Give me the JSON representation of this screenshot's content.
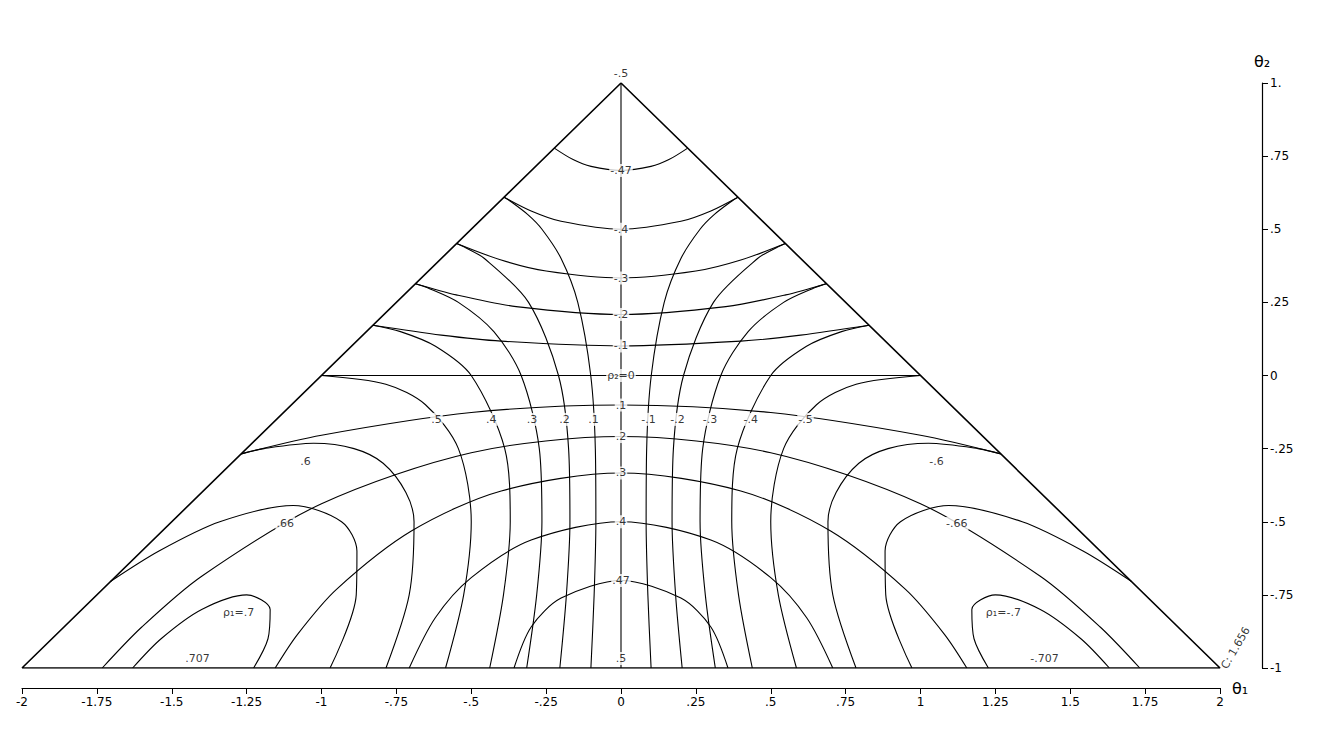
{
  "chart_data": {
    "type": "line",
    "xlabel": "θ₁",
    "ylabel": "θ₂",
    "color": "#000000",
    "grid": false,
    "xlim": [
      -2,
      2
    ],
    "xticks": [
      -2,
      -1.75,
      -1.5,
      -1.25,
      -1,
      {
        "value": -0.75,
        "label": "-.75"
      },
      {
        "value": -0.5,
        "label": "-.5"
      },
      {
        "value": -0.25,
        "label": "-.25"
      },
      0,
      {
        "value": 0.25,
        "label": ".25"
      },
      {
        "value": 0.5,
        "label": ".5"
      },
      {
        "value": 0.75,
        "label": ".75"
      },
      1,
      1.25,
      1.5,
      1.75,
      2
    ],
    "ylim": [
      -1,
      1
    ],
    "yticks": [
      -1,
      {
        "value": -0.75,
        "label": "-.75"
      },
      {
        "value": -0.5,
        "label": "-.5"
      },
      {
        "value": -0.25,
        "label": "-.25"
      },
      0,
      {
        "value": 0.25,
        "label": ".25"
      },
      {
        "value": 0.5,
        "label": ".5"
      },
      {
        "value": 0.75,
        "label": ".75"
      },
      {
        "value": 1,
        "label": "1."
      }
    ],
    "boundary": {
      "x": [
        -2,
        0,
        2,
        -2
      ],
      "values": [
        -1,
        1,
        -1,
        -1
      ]
    },
    "rho2_curves": [
      {
        "label": "-.47",
        "x": [
          -0.2227,
          -0.16,
          -0.1,
          0,
          0.1,
          0.16,
          0.2227
        ],
        "values": [
          0.7773,
          0.7381,
          0.7149,
          0.7009,
          0.7149,
          0.7381,
          0.7773
        ]
      },
      {
        "label": "-.4",
        "x": [
          -0.3904,
          -0.3,
          -0.2,
          0,
          0.2,
          0.3,
          0.3904
        ],
        "values": [
          0.6096,
          0.5626,
          0.5272,
          0.5,
          0.5272,
          0.5626,
          0.6096
        ]
      },
      {
        "label": "-.3",
        "x": [
          -0.5486,
          -0.4,
          -0.25,
          0,
          0.25,
          0.4,
          0.5486
        ],
        "values": [
          0.4514,
          0.3948,
          0.357,
          0.3333,
          0.357,
          0.3948,
          0.4514
        ]
      },
      {
        "label": "-.2",
        "x": [
          -0.6861,
          -0.55,
          -0.35,
          0,
          0.35,
          0.55,
          0.6861
        ],
        "values": [
          0.3139,
          0.2757,
          0.2356,
          0.2087,
          0.2356,
          0.2757,
          0.3139
        ]
      },
      {
        "label": "-.1",
        "x": [
          -0.8284,
          -0.6,
          -0.4,
          0,
          0.4,
          0.6,
          0.8284
        ],
        "values": [
          0.1716,
          0.1379,
          0.1174,
          0.101,
          0.1174,
          0.1379,
          0.1716
        ]
      },
      {
        "label": "ρ₂=0",
        "x": [
          -1,
          0,
          1
        ],
        "values": [
          0,
          0,
          0
        ]
      },
      {
        "label": ".1",
        "x": [
          -1.268,
          -1,
          -0.5,
          0,
          0.5,
          1,
          1.268
        ],
        "values": [
          -0.268,
          -0.2042,
          -0.1266,
          -0.101,
          -0.1266,
          -0.2042,
          -0.268
        ]
      },
      {
        "label": ".2",
        "x": [
          -1.7321,
          -1.6,
          -1.4,
          -1,
          -0.5,
          0,
          0.5,
          1,
          1.4,
          1.6,
          1.7321
        ],
        "values": [
          -1,
          -0.8599,
          -0.6862,
          -0.4384,
          -0.2639,
          -0.2087,
          -0.2639,
          -0.4384,
          -0.6862,
          -0.8599,
          -1
        ]
      },
      {
        "label": ".3",
        "x": [
          -1.1547,
          -1.08,
          -0.95,
          -0.7,
          -0.4,
          0,
          0.4,
          0.7,
          0.95,
          1.08,
          1.1547
        ],
        "values": [
          -1,
          -0.8848,
          -0.7311,
          -0.5319,
          -0.3948,
          -0.3333,
          -0.3948,
          -0.5319,
          -0.7311,
          -0.8848,
          -1
        ]
      },
      {
        "label": ".4",
        "x": [
          -0.7071,
          -0.62,
          -0.5,
          -0.3,
          0,
          0.3,
          0.5,
          0.62,
          0.7071
        ],
        "values": [
          -1,
          -0.8281,
          -0.691,
          -0.5626,
          -0.5,
          -0.5626,
          -0.691,
          -0.8281,
          -1
        ]
      },
      {
        "label": ".47",
        "x": [
          -0.3572,
          -0.3,
          -0.2,
          0,
          0.2,
          0.3,
          0.3572
        ],
        "values": [
          -1,
          -0.8596,
          -0.761,
          -0.7009,
          -0.761,
          -0.8596,
          -1
        ]
      }
    ],
    "rho1_curves": [
      {
        "label": "ρ₁=.7",
        "x": [
          -1.2266,
          -1.1787,
          -1.1714,
          -1.25,
          -1.4,
          -1.5356,
          -1.6306
        ],
        "values": [
          -1,
          -0.9,
          -0.8,
          -0.75,
          -0.8,
          -0.9,
          -1
        ]
      },
      {
        "label": ".66",
        "x": [
          -0.9714,
          -0.884,
          -0.8817,
          -0.9331,
          -1.0944,
          -1.3396,
          -1.5426,
          -1.7035
        ],
        "values": [
          -1,
          -0.75,
          -0.6,
          -0.5,
          -0.4446,
          -0.5,
          -0.6,
          -0.7035
        ]
      },
      {
        "label": ".6",
        "x": [
          -0.7847,
          -0.7072,
          -0.691,
          -0.7182,
          -0.7942,
          -0.8914,
          -1.0265,
          -1.1919,
          -1.268
        ],
        "values": [
          -1,
          -0.75,
          -0.5,
          -0.4,
          -0.3,
          -0.25,
          -0.2318,
          -0.25,
          -0.268
        ]
      },
      {
        "label": ".5",
        "x": [
          -0.5858,
          -0.5253,
          -0.5,
          -0.5429,
          -0.6528,
          -0.7851,
          -1
        ],
        "values": [
          -1,
          -0.75,
          -0.5,
          -0.25,
          -0.1,
          -0.03,
          0
        ]
      },
      {
        "label": ".4",
        "x": [
          -0.4384,
          -0.3924,
          -0.3698,
          -0.3882,
          -0.5,
          -0.6194,
          -0.7363,
          -0.8284
        ],
        "values": [
          -1,
          -0.75,
          -0.5,
          -0.25,
          0,
          0.1,
          0.15,
          0.1716
        ]
      },
      {
        "label": ".3",
        "x": [
          -0.3149,
          -0.2815,
          -0.264,
          -0.2728,
          -0.3333,
          -0.4245,
          -0.5429,
          -0.646,
          -0.686
        ],
        "values": [
          -1,
          -0.75,
          -0.5,
          -0.25,
          0,
          0.15,
          0.25,
          0.3,
          0.314
        ]
      },
      {
        "label": ".2",
        "x": [
          -0.2042,
          -0.1823,
          -0.1705,
          -0.175,
          -0.2087,
          -0.3087,
          -0.456,
          -0.5246,
          -0.5486
        ],
        "values": [
          -1,
          -0.75,
          -0.5,
          -0.25,
          0,
          0.25,
          0.4,
          0.44,
          0.4514
        ]
      },
      {
        "label": ".1",
        "x": [
          -0.1005,
          -0.0897,
          -0.0839,
          -0.0857,
          -0.101,
          -0.1443,
          -0.2,
          -0.2639,
          -0.311,
          -0.375,
          -0.3904
        ],
        "values": [
          -1,
          -0.75,
          -0.5,
          -0.25,
          0,
          0.25,
          0.4,
          0.5,
          0.55,
          0.6,
          0.6096
        ]
      },
      {
        "x": [
          0,
          0
        ],
        "values": [
          -1,
          1
        ]
      },
      {
        "label": "-.1",
        "x": [
          0.1005,
          0.0897,
          0.0839,
          0.0857,
          0.101,
          0.1443,
          0.2,
          0.2639,
          0.311,
          0.375,
          0.3904
        ],
        "values": [
          -1,
          -0.75,
          -0.5,
          -0.25,
          0,
          0.25,
          0.4,
          0.5,
          0.55,
          0.6,
          0.6096
        ]
      },
      {
        "label": "-.2",
        "x": [
          0.2042,
          0.1823,
          0.1705,
          0.175,
          0.2087,
          0.3087,
          0.456,
          0.5246,
          0.5486
        ],
        "values": [
          -1,
          -0.75,
          -0.5,
          -0.25,
          0,
          0.25,
          0.4,
          0.44,
          0.4514
        ]
      },
      {
        "label": "-.3",
        "x": [
          0.3149,
          0.2815,
          0.264,
          0.2728,
          0.3333,
          0.4245,
          0.5429,
          0.646,
          0.686
        ],
        "values": [
          -1,
          -0.75,
          -0.5,
          -0.25,
          0,
          0.15,
          0.25,
          0.3,
          0.314
        ]
      },
      {
        "label": "-.4",
        "x": [
          0.4384,
          0.3924,
          0.3698,
          0.3882,
          0.5,
          0.6194,
          0.7363,
          0.8284
        ],
        "values": [
          -1,
          -0.75,
          -0.5,
          -0.25,
          0,
          0.1,
          0.15,
          0.1716
        ]
      },
      {
        "label": "-.5",
        "x": [
          0.5858,
          0.5253,
          0.5,
          0.5429,
          0.6528,
          0.7851,
          1
        ],
        "values": [
          -1,
          -0.75,
          -0.5,
          -0.25,
          -0.1,
          -0.03,
          0
        ]
      },
      {
        "label": "-.6",
        "x": [
          0.7847,
          0.7072,
          0.691,
          0.7182,
          0.7942,
          0.8914,
          1.0265,
          1.1919,
          1.268
        ],
        "values": [
          -1,
          -0.75,
          -0.5,
          -0.4,
          -0.3,
          -0.25,
          -0.2318,
          -0.25,
          -0.268
        ]
      },
      {
        "label": "-.66",
        "x": [
          0.9714,
          0.884,
          0.8817,
          0.9331,
          1.0944,
          1.3396,
          1.5426,
          1.7035
        ],
        "values": [
          -1,
          -0.75,
          -0.6,
          -0.5,
          -0.4446,
          -0.5,
          -0.6,
          -0.7035
        ]
      },
      {
        "label": "ρ₁=-.7",
        "x": [
          1.2266,
          1.1787,
          1.1714,
          1.25,
          1.4,
          1.5356,
          1.6306
        ],
        "values": [
          -1,
          -0.9,
          -0.8,
          -0.75,
          -0.8,
          -0.9,
          -1
        ]
      }
    ],
    "points": [
      {
        "label": "-.5",
        "x": 0,
        "y": 1
      },
      {
        "label": ".5",
        "x": 0,
        "y": -1
      },
      {
        "label": ".707",
        "x": -1.4142,
        "y": -1
      },
      {
        "label": "-.707",
        "x": 1.4142,
        "y": -1
      }
    ],
    "annotations": [
      {
        "text": "C: 1.656",
        "x": 2,
        "y": -1
      }
    ]
  }
}
